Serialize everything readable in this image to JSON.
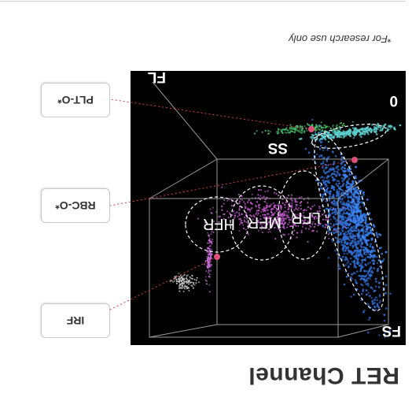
{
  "title": "RET Channel",
  "footnote": "*For research use only",
  "labels": {
    "irf": "IRF",
    "rbc": "RBC-O*",
    "plt": "PLT-O*"
  },
  "axes": {
    "fs": "FS",
    "ss": "SS",
    "fl": "FL",
    "origin": "0"
  },
  "regions": {
    "lfr": "LFR",
    "mfr": "MFR",
    "hfr": "HFR"
  },
  "colors": {
    "rbc_cluster": "#2f6fd6",
    "reticulocyte_cluster": "#c45bd0",
    "plt_cluster": "#5fd0d0",
    "rbc_ghost": "#4bbf6b",
    "marker": "#e0527a",
    "connector": "#d7385c",
    "background": "#000000"
  }
}
